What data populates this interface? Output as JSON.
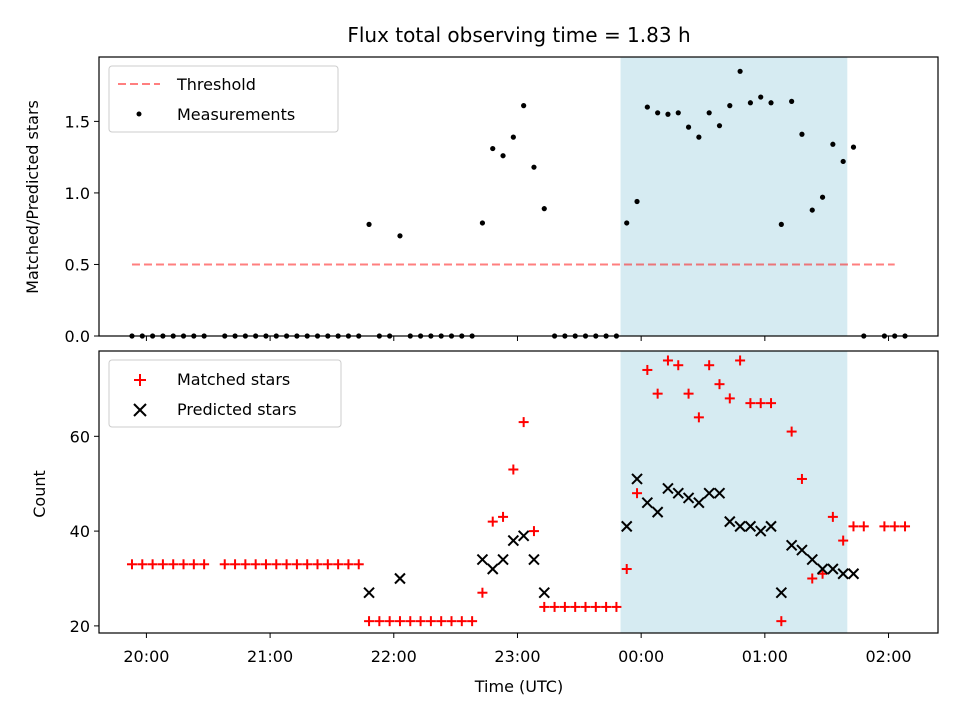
{
  "chart_data": [
    {
      "type": "scatter",
      "title": "Flux total observing time = 1.83 h",
      "xlabel": "",
      "ylabel": "Matched/Predicted stars",
      "ylim": [
        0,
        1.95
      ],
      "xlim": [
        "19:37",
        "02:24"
      ],
      "yticks": [
        "0.0",
        "0.5",
        "1.0",
        "1.5"
      ],
      "yticks_values": [
        0,
        0.5,
        1.0,
        1.5
      ],
      "legend_position": "top-left",
      "shaded_region": {
        "start": "23:50",
        "end": "01:40",
        "color": "#add8e6"
      },
      "series": [
        {
          "name": "Threshold",
          "marker": "dashed-line",
          "color": "#ff0000",
          "x": [
            "19:53",
            "02:03"
          ],
          "y": [
            0.5,
            0.5
          ]
        },
        {
          "name": "Measurements",
          "marker": "dot",
          "color": "#000000",
          "points": [
            [
              "19:53",
              0
            ],
            [
              "19:58",
              0
            ],
            [
              "20:03",
              0
            ],
            [
              "20:08",
              0
            ],
            [
              "20:13",
              0
            ],
            [
              "20:18",
              0
            ],
            [
              "20:23",
              0
            ],
            [
              "20:28",
              0
            ],
            [
              "20:38",
              0
            ],
            [
              "20:43",
              0
            ],
            [
              "20:48",
              0
            ],
            [
              "20:53",
              0
            ],
            [
              "20:58",
              0
            ],
            [
              "21:03",
              0
            ],
            [
              "21:08",
              0
            ],
            [
              "21:13",
              0
            ],
            [
              "21:18",
              0
            ],
            [
              "21:23",
              0
            ],
            [
              "21:28",
              0
            ],
            [
              "21:33",
              0
            ],
            [
              "21:38",
              0
            ],
            [
              "21:43",
              0
            ],
            [
              "21:48",
              0.78
            ],
            [
              "21:53",
              0
            ],
            [
              "21:58",
              0
            ],
            [
              "22:03",
              0.7
            ],
            [
              "22:08",
              0
            ],
            [
              "22:13",
              0
            ],
            [
              "22:18",
              0
            ],
            [
              "22:23",
              0
            ],
            [
              "22:28",
              0
            ],
            [
              "22:33",
              0
            ],
            [
              "22:38",
              0
            ],
            [
              "22:43",
              0.79
            ],
            [
              "22:48",
              1.31
            ],
            [
              "22:53",
              1.26
            ],
            [
              "22:58",
              1.39
            ],
            [
              "23:03",
              1.61
            ],
            [
              "23:08",
              1.18
            ],
            [
              "23:13",
              0.89
            ],
            [
              "23:18",
              0
            ],
            [
              "23:23",
              0
            ],
            [
              "23:28",
              0
            ],
            [
              "23:33",
              0
            ],
            [
              "23:38",
              0
            ],
            [
              "23:43",
              0
            ],
            [
              "23:48",
              0
            ],
            [
              "23:53",
              0.79
            ],
            [
              "23:58",
              0.94
            ],
            [
              "00:03",
              1.6
            ],
            [
              "00:08",
              1.56
            ],
            [
              "00:13",
              1.55
            ],
            [
              "00:18",
              1.56
            ],
            [
              "00:23",
              1.46
            ],
            [
              "00:28",
              1.39
            ],
            [
              "00:33",
              1.56
            ],
            [
              "00:38",
              1.47
            ],
            [
              "00:43",
              1.61
            ],
            [
              "00:48",
              1.85
            ],
            [
              "00:53",
              1.63
            ],
            [
              "00:58",
              1.67
            ],
            [
              "01:03",
              1.63
            ],
            [
              "01:08",
              0.78
            ],
            [
              "01:13",
              1.64
            ],
            [
              "01:18",
              1.41
            ],
            [
              "01:23",
              0.88
            ],
            [
              "01:28",
              0.97
            ],
            [
              "01:33",
              1.34
            ],
            [
              "01:38",
              1.22
            ],
            [
              "01:43",
              1.32
            ],
            [
              "01:48",
              0
            ],
            [
              "01:58",
              0
            ],
            [
              "02:03",
              0
            ],
            [
              "02:08",
              0
            ]
          ]
        }
      ]
    },
    {
      "type": "scatter",
      "title": "",
      "xlabel": "Time (UTC)",
      "ylabel": "Count",
      "ylim": [
        18.5,
        78
      ],
      "xlim": [
        "19:37",
        "02:24"
      ],
      "yticks": [
        "20",
        "40",
        "60"
      ],
      "yticks_values": [
        20,
        40,
        60
      ],
      "xticks": [
        "20:00",
        "21:00",
        "22:00",
        "23:00",
        "00:00",
        "01:00",
        "02:00"
      ],
      "legend_position": "top-left",
      "shaded_region": {
        "start": "23:50",
        "end": "01:40",
        "color": "#add8e6"
      },
      "series": [
        {
          "name": "Matched stars",
          "marker": "plus",
          "color": "#ff0000",
          "points": [
            [
              "19:53",
              33
            ],
            [
              "19:58",
              33
            ],
            [
              "20:03",
              33
            ],
            [
              "20:08",
              33
            ],
            [
              "20:13",
              33
            ],
            [
              "20:18",
              33
            ],
            [
              "20:23",
              33
            ],
            [
              "20:28",
              33
            ],
            [
              "20:38",
              33
            ],
            [
              "20:43",
              33
            ],
            [
              "20:48",
              33
            ],
            [
              "20:53",
              33
            ],
            [
              "20:58",
              33
            ],
            [
              "21:03",
              33
            ],
            [
              "21:08",
              33
            ],
            [
              "21:13",
              33
            ],
            [
              "21:18",
              33
            ],
            [
              "21:23",
              33
            ],
            [
              "21:28",
              33
            ],
            [
              "21:33",
              33
            ],
            [
              "21:38",
              33
            ],
            [
              "21:43",
              33
            ],
            [
              "21:48",
              21
            ],
            [
              "21:53",
              21
            ],
            [
              "21:58",
              21
            ],
            [
              "22:03",
              21
            ],
            [
              "22:08",
              21
            ],
            [
              "22:13",
              21
            ],
            [
              "22:18",
              21
            ],
            [
              "22:23",
              21
            ],
            [
              "22:28",
              21
            ],
            [
              "22:33",
              21
            ],
            [
              "22:38",
              21
            ],
            [
              "22:43",
              27
            ],
            [
              "22:48",
              42
            ],
            [
              "22:53",
              43
            ],
            [
              "22:58",
              53
            ],
            [
              "23:03",
              63
            ],
            [
              "23:08",
              40
            ],
            [
              "23:13",
              24
            ],
            [
              "23:18",
              24
            ],
            [
              "23:23",
              24
            ],
            [
              "23:28",
              24
            ],
            [
              "23:33",
              24
            ],
            [
              "23:38",
              24
            ],
            [
              "23:43",
              24
            ],
            [
              "23:48",
              24
            ],
            [
              "23:53",
              32
            ],
            [
              "23:58",
              48
            ],
            [
              "00:03",
              74
            ],
            [
              "00:08",
              69
            ],
            [
              "00:13",
              76
            ],
            [
              "00:18",
              75
            ],
            [
              "00:23",
              69
            ],
            [
              "00:28",
              64
            ],
            [
              "00:33",
              75
            ],
            [
              "00:38",
              71
            ],
            [
              "00:43",
              68
            ],
            [
              "00:48",
              76
            ],
            [
              "00:53",
              67
            ],
            [
              "00:58",
              67
            ],
            [
              "01:03",
              67
            ],
            [
              "01:08",
              21
            ],
            [
              "01:13",
              61
            ],
            [
              "01:18",
              51
            ],
            [
              "01:23",
              30
            ],
            [
              "01:28",
              31
            ],
            [
              "01:33",
              43
            ],
            [
              "01:38",
              38
            ],
            [
              "01:43",
              41
            ],
            [
              "01:48",
              41
            ],
            [
              "01:58",
              41
            ],
            [
              "02:03",
              41
            ],
            [
              "02:08",
              41
            ]
          ]
        },
        {
          "name": "Predicted stars",
          "marker": "x",
          "color": "#000000",
          "points": [
            [
              "21:48",
              27
            ],
            [
              "22:03",
              30
            ],
            [
              "22:43",
              34
            ],
            [
              "22:48",
              32
            ],
            [
              "22:53",
              34
            ],
            [
              "22:58",
              38
            ],
            [
              "23:03",
              39
            ],
            [
              "23:08",
              34
            ],
            [
              "23:13",
              27
            ],
            [
              "23:53",
              41
            ],
            [
              "23:58",
              51
            ],
            [
              "00:03",
              46
            ],
            [
              "00:08",
              44
            ],
            [
              "00:13",
              49
            ],
            [
              "00:18",
              48
            ],
            [
              "00:23",
              47
            ],
            [
              "00:28",
              46
            ],
            [
              "00:33",
              48
            ],
            [
              "00:38",
              48
            ],
            [
              "00:43",
              42
            ],
            [
              "00:48",
              41
            ],
            [
              "00:53",
              41
            ],
            [
              "00:58",
              40
            ],
            [
              "01:03",
              41
            ],
            [
              "01:08",
              27
            ],
            [
              "01:13",
              37
            ],
            [
              "01:18",
              36
            ],
            [
              "01:23",
              34
            ],
            [
              "01:28",
              32
            ],
            [
              "01:33",
              32
            ],
            [
              "01:38",
              31
            ],
            [
              "01:43",
              31
            ]
          ]
        }
      ]
    }
  ]
}
